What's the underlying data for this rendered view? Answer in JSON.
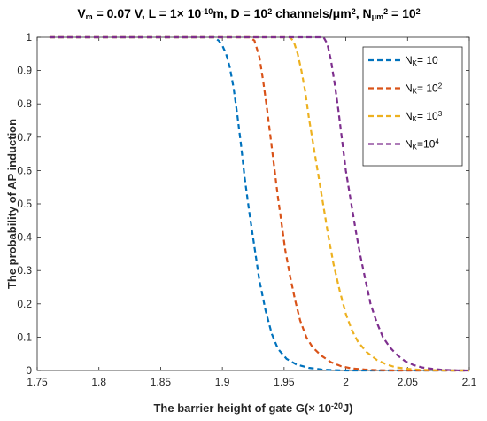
{
  "chart_data": {
    "type": "line",
    "title": {
      "parts": [
        {
          "text": "V",
          "sup": false,
          "sub": false
        },
        {
          "text": "m",
          "sub": true
        },
        {
          "text": " = 0.07 V, L = 1× 10",
          "sub": false
        },
        {
          "text": "-10",
          "sup": true
        },
        {
          "text": "m, D = 10",
          "sub": false
        },
        {
          "text": "2",
          "sup": true
        },
        {
          "text": " channels/μm",
          "sub": false
        },
        {
          "text": "2",
          "sup": true
        },
        {
          "text": ", N",
          "sub": false
        },
        {
          "text": "μm",
          "sub": true
        },
        {
          "text": "2",
          "sup": true
        },
        {
          "text": " = 10",
          "sub": false
        },
        {
          "text": "2",
          "sup": true
        }
      ]
    },
    "xlabel": "The barrier height of gate G(× 10",
    "xlabel_sup": "-20",
    "xlabel_end": "J)",
    "ylabel": "The probability of AP induction",
    "xlim": [
      1.75,
      2.1
    ],
    "ylim": [
      0,
      1
    ],
    "xticks": [
      "1.75",
      "1.8",
      "1.85",
      "1.9",
      "1.95",
      "2",
      "2.05",
      "2.1"
    ],
    "yticks": [
      "0",
      "0.1",
      "0.2",
      "0.3",
      "0.4",
      "0.5",
      "0.6",
      "0.7",
      "0.8",
      "0.9",
      "1"
    ],
    "grid": false,
    "legend_position": "top-right",
    "series": [
      {
        "name": "N",
        "name_sub": "K",
        "name_rest": "= 10",
        "name_sup": "",
        "color": "#0072BD",
        "dash": "dashed",
        "x": [
          1.76,
          1.893,
          1.897,
          1.9,
          1.903,
          1.906,
          1.909,
          1.912,
          1.915,
          1.918,
          1.922,
          1.926,
          1.93,
          1.935,
          1.94,
          1.945,
          1.952,
          1.96,
          1.97,
          1.98,
          1.99,
          2.0,
          2.02,
          2.05,
          2.1
        ],
        "y": [
          1.0,
          1.0,
          0.99,
          0.975,
          0.95,
          0.91,
          0.85,
          0.77,
          0.68,
          0.58,
          0.47,
          0.37,
          0.27,
          0.18,
          0.11,
          0.065,
          0.035,
          0.018,
          0.008,
          0.003,
          0.001,
          0.0,
          0.0,
          0.0,
          0.0
        ]
      },
      {
        "name": "N",
        "name_sub": "K",
        "name_rest": "= 10",
        "name_sup": "2",
        "color": "#D95319",
        "dash": "dashed",
        "x": [
          1.76,
          1.922,
          1.926,
          1.93,
          1.933,
          1.936,
          1.939,
          1.942,
          1.945,
          1.948,
          1.951,
          1.955,
          1.959,
          1.963,
          1.968,
          1.973,
          1.98,
          1.988,
          1.996,
          2.005,
          2.015,
          2.025,
          2.04,
          2.06,
          2.1
        ],
        "y": [
          1.0,
          1.0,
          0.99,
          0.94,
          0.87,
          0.79,
          0.7,
          0.61,
          0.52,
          0.44,
          0.36,
          0.28,
          0.21,
          0.15,
          0.1,
          0.07,
          0.045,
          0.025,
          0.013,
          0.006,
          0.003,
          0.001,
          0.0,
          0.0,
          0.0
        ]
      },
      {
        "name": "N",
        "name_sub": "K",
        "name_rest": "= 10",
        "name_sup": "3",
        "color": "#EDB120",
        "dash": "dashed",
        "x": [
          1.76,
          1.955,
          1.958,
          1.961,
          1.964,
          1.967,
          1.97,
          1.974,
          1.978,
          1.982,
          1.986,
          1.99,
          1.995,
          2.0,
          2.005,
          2.01,
          2.017,
          2.025,
          2.033,
          2.04,
          2.05,
          2.06,
          2.07,
          2.08,
          2.1
        ],
        "y": [
          1.0,
          1.0,
          0.985,
          0.95,
          0.9,
          0.84,
          0.76,
          0.67,
          0.58,
          0.49,
          0.4,
          0.32,
          0.24,
          0.17,
          0.12,
          0.085,
          0.055,
          0.032,
          0.018,
          0.01,
          0.005,
          0.002,
          0.001,
          0.0,
          0.0
        ]
      },
      {
        "name": "N",
        "name_sub": "K",
        "name_rest": "=10",
        "name_sup": "4",
        "color": "#7E2F8E",
        "dash": "dashed",
        "x": [
          1.76,
          1.982,
          1.985,
          1.988,
          1.991,
          1.994,
          1.997,
          2.0,
          2.004,
          2.008,
          2.012,
          2.016,
          2.02,
          2.025,
          2.03,
          2.036,
          2.042,
          2.048,
          2.055,
          2.062,
          2.07,
          2.078,
          2.086,
          2.094,
          2.1
        ],
        "y": [
          1.0,
          1.0,
          0.98,
          0.93,
          0.86,
          0.78,
          0.69,
          0.6,
          0.51,
          0.42,
          0.34,
          0.27,
          0.2,
          0.145,
          0.1,
          0.068,
          0.045,
          0.028,
          0.016,
          0.009,
          0.005,
          0.002,
          0.001,
          0.0,
          0.0
        ]
      }
    ]
  }
}
